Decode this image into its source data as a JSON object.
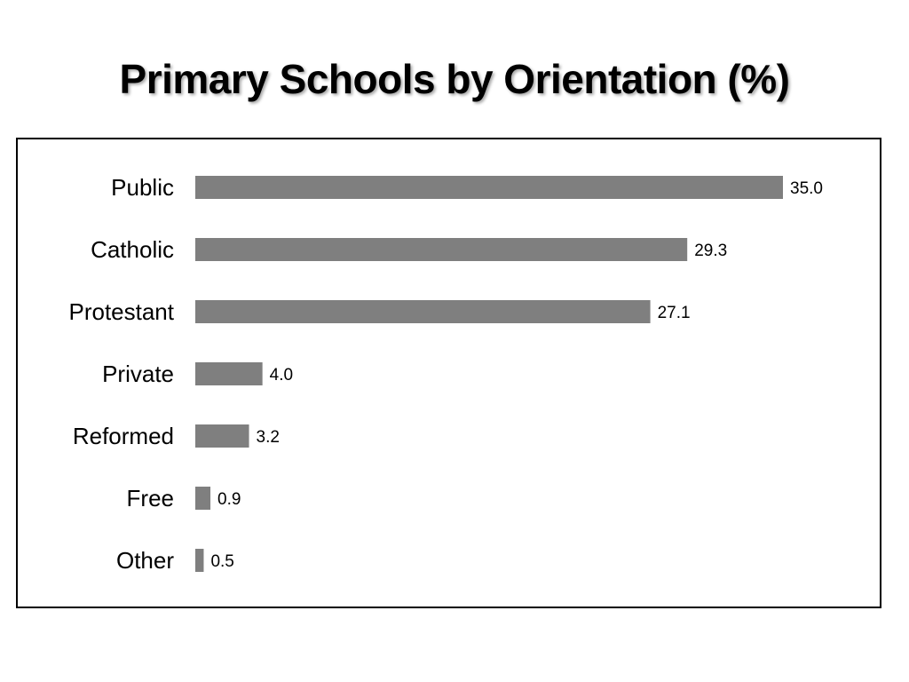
{
  "title": "Primary Schools by Orientation (%)",
  "colors": {
    "bar": "#7f7f7f",
    "frame": "#000000",
    "text": "#000000"
  },
  "chart_data": {
    "type": "bar",
    "orientation": "horizontal",
    "categories": [
      "Public",
      "Catholic",
      "Protestant",
      "Private",
      "Reformed",
      "Free",
      "Other"
    ],
    "values": [
      35.0,
      29.3,
      27.1,
      4.0,
      3.2,
      0.9,
      0.5
    ],
    "value_labels": [
      "35.0",
      "29.3",
      "27.1",
      "4.0",
      "3.2",
      "0.9",
      "0.5"
    ],
    "xlim": [
      0,
      35
    ],
    "grid": false,
    "legend": "none"
  }
}
